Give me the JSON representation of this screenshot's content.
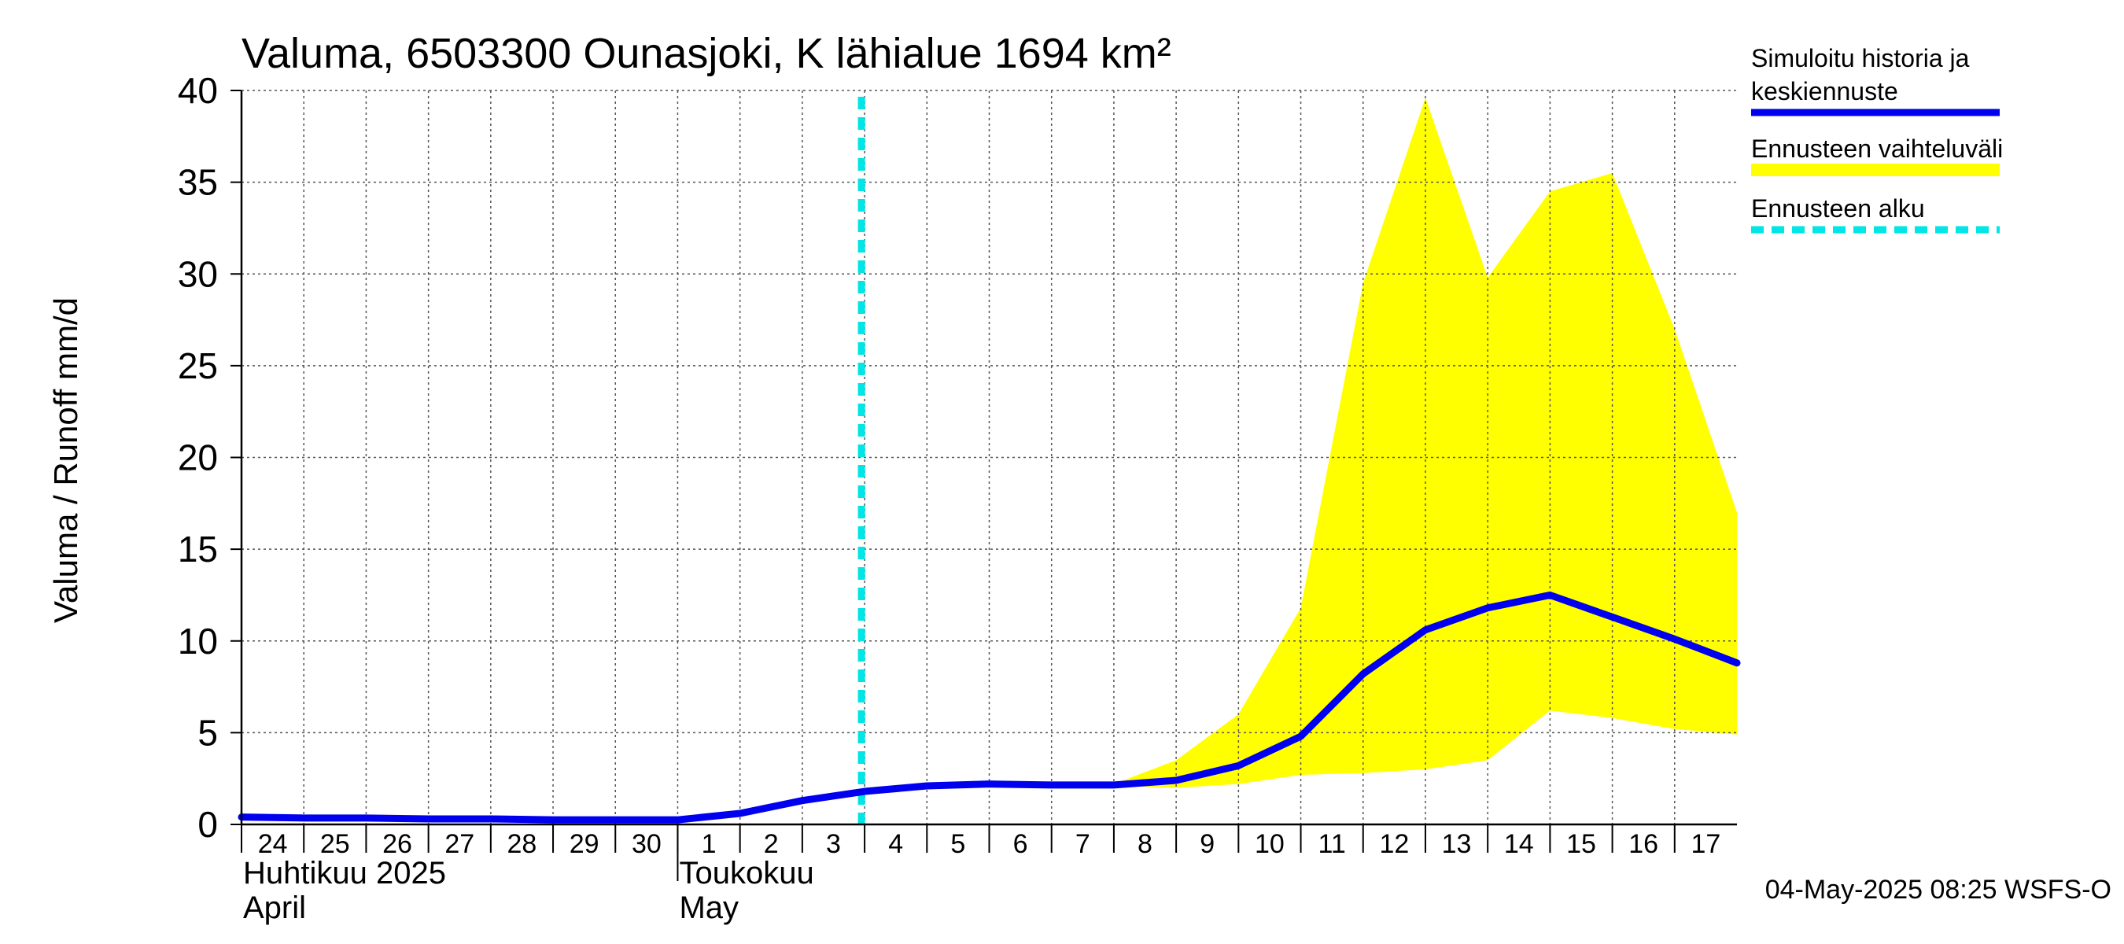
{
  "chart_data": {
    "type": "line",
    "title": "Valuma, 6503300 Ounasjoki, K lähialue 1694 km²",
    "ylabel": "Valuma / Runoff    mm/d",
    "ylim": [
      0,
      40
    ],
    "yticks": [
      0,
      5,
      10,
      15,
      20,
      25,
      30,
      35,
      40
    ],
    "x_start": "2025-04-24",
    "x_end": "2025-05-18",
    "xticks": [
      {
        "date": "2025-04-24",
        "label": "24"
      },
      {
        "date": "2025-04-25",
        "label": "25"
      },
      {
        "date": "2025-04-26",
        "label": "26"
      },
      {
        "date": "2025-04-27",
        "label": "27"
      },
      {
        "date": "2025-04-28",
        "label": "28"
      },
      {
        "date": "2025-04-29",
        "label": "29"
      },
      {
        "date": "2025-04-30",
        "label": "30"
      },
      {
        "date": "2025-05-01",
        "label": "1"
      },
      {
        "date": "2025-05-02",
        "label": "2"
      },
      {
        "date": "2025-05-03",
        "label": "3"
      },
      {
        "date": "2025-05-04",
        "label": "4"
      },
      {
        "date": "2025-05-05",
        "label": "5"
      },
      {
        "date": "2025-05-06",
        "label": "6"
      },
      {
        "date": "2025-05-07",
        "label": "7"
      },
      {
        "date": "2025-05-08",
        "label": "8"
      },
      {
        "date": "2025-05-09",
        "label": "9"
      },
      {
        "date": "2025-05-10",
        "label": "10"
      },
      {
        "date": "2025-05-11",
        "label": "11"
      },
      {
        "date": "2025-05-12",
        "label": "12"
      },
      {
        "date": "2025-05-13",
        "label": "13"
      },
      {
        "date": "2025-05-14",
        "label": "14"
      },
      {
        "date": "2025-05-15",
        "label": "15"
      },
      {
        "date": "2025-05-16",
        "label": "16"
      },
      {
        "date": "2025-05-17",
        "label": "17"
      }
    ],
    "month_labels": [
      {
        "date": "2025-04-24",
        "line1": "Huhtikuu  2025",
        "line2": "April"
      },
      {
        "date": "2025-05-01",
        "line1": "Toukokuu",
        "line2": "May"
      }
    ],
    "month_divider": "2025-05-01",
    "forecast_start": "2025-05-04",
    "grid": true,
    "legend_position": "right",
    "series": [
      {
        "name": "Simuloitu historia ja keskiennuste",
        "color": "#0000ee",
        "points": [
          [
            "2025-04-24",
            0.4
          ],
          [
            "2025-04-25",
            0.35
          ],
          [
            "2025-04-26",
            0.35
          ],
          [
            "2025-04-27",
            0.3
          ],
          [
            "2025-04-28",
            0.3
          ],
          [
            "2025-04-29",
            0.25
          ],
          [
            "2025-04-30",
            0.25
          ],
          [
            "2025-05-01",
            0.25
          ],
          [
            "2025-05-02",
            0.6
          ],
          [
            "2025-05-03",
            1.3
          ],
          [
            "2025-05-04",
            1.8
          ],
          [
            "2025-05-05",
            2.1
          ],
          [
            "2025-05-06",
            2.2
          ],
          [
            "2025-05-07",
            2.15
          ],
          [
            "2025-05-08",
            2.15
          ],
          [
            "2025-05-09",
            2.4
          ],
          [
            "2025-05-10",
            3.2
          ],
          [
            "2025-05-11",
            4.8
          ],
          [
            "2025-05-12",
            8.2
          ],
          [
            "2025-05-13",
            10.6
          ],
          [
            "2025-05-14",
            11.8
          ],
          [
            "2025-05-15",
            12.5
          ],
          [
            "2025-05-16",
            11.3
          ],
          [
            "2025-05-17",
            10.1
          ],
          [
            "2025-05-18",
            8.8
          ]
        ]
      }
    ],
    "band": {
      "name": "Ennusteen vaihteluväli",
      "color": "#ffff00",
      "upper": [
        [
          "2025-05-08",
          2.2
        ],
        [
          "2025-05-09",
          3.5
        ],
        [
          "2025-05-10",
          6.0
        ],
        [
          "2025-05-11",
          11.8
        ],
        [
          "2025-05-12",
          29.5
        ],
        [
          "2025-05-13",
          39.6
        ],
        [
          "2025-05-14",
          29.8
        ],
        [
          "2025-05-15",
          34.5
        ],
        [
          "2025-05-16",
          35.5
        ],
        [
          "2025-05-17",
          27.0
        ],
        [
          "2025-05-18",
          17.0
        ]
      ],
      "lower": [
        [
          "2025-05-08",
          2.1
        ],
        [
          "2025-05-09",
          2.0
        ],
        [
          "2025-05-10",
          2.2
        ],
        [
          "2025-05-11",
          2.7
        ],
        [
          "2025-05-12",
          2.8
        ],
        [
          "2025-05-13",
          3.0
        ],
        [
          "2025-05-14",
          3.5
        ],
        [
          "2025-05-15",
          6.2
        ],
        [
          "2025-05-16",
          5.8
        ],
        [
          "2025-05-17",
          5.2
        ],
        [
          "2025-05-18",
          4.9
        ]
      ]
    },
    "forecast_line": {
      "name": "Ennusteen alku",
      "color": "#00e5e5"
    },
    "legend": [
      {
        "line1": "Simuloitu historia ja",
        "line2": "keskiennuste",
        "color": "#0000ee",
        "style": "solid"
      },
      {
        "line1": "Ennusteen vaihteluväli",
        "line2": "",
        "color": "#ffff00",
        "style": "band"
      },
      {
        "line1": "Ennusteen alku",
        "line2": "",
        "color": "#00e5e5",
        "style": "dashed"
      }
    ]
  },
  "footer": "04-May-2025 08:25 WSFS-O"
}
